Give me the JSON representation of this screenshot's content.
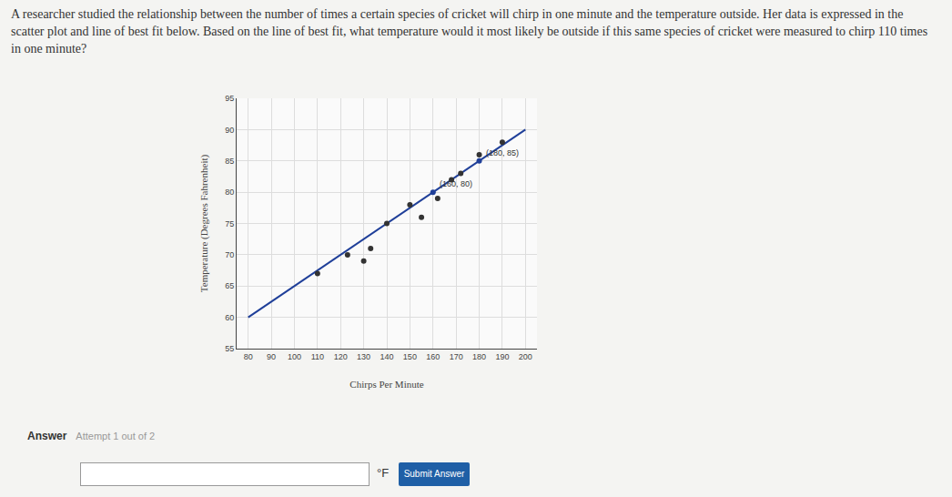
{
  "question": "A researcher studied the relationship between the number of times a certain species of cricket will chirp in one minute and the temperature outside. Her data is expressed in the scatter plot and line of best fit below. Based on the line of best fit, what temperature would it most likely be outside if this same species of cricket were measured to chirp 110 times in one minute?",
  "answer": {
    "label": "Answer",
    "attempt": "Attempt 1 out of 2",
    "unit": "°F",
    "button": "Submit Answer"
  },
  "chart_data": {
    "type": "scatter",
    "xlabel": "Chirps Per Minute",
    "ylabel": "Temperature (Degrees Fahrenheit)",
    "x": [
      110,
      123,
      130,
      133,
      140,
      150,
      155,
      162,
      168,
      172,
      180,
      190
    ],
    "values": [
      67,
      70,
      69,
      71,
      75,
      78,
      76,
      79,
      82,
      83,
      86,
      88
    ],
    "color": "#333333",
    "best_fit": {
      "x": [
        80,
        200
      ],
      "y": [
        60,
        90
      ],
      "color": "#1f3f99"
    },
    "annotations": [
      {
        "x": 160,
        "y": 80,
        "label": "(160, 80)"
      },
      {
        "x": 180,
        "y": 85,
        "label": "(180, 85)"
      }
    ],
    "xlim": [
      75,
      205
    ],
    "xticks": [
      80,
      90,
      100,
      110,
      120,
      130,
      140,
      150,
      160,
      170,
      180,
      190,
      200
    ],
    "ylim": [
      55,
      95
    ],
    "yticks": [
      55,
      60,
      65,
      70,
      75,
      80,
      85,
      90,
      95
    ],
    "grid": true
  }
}
